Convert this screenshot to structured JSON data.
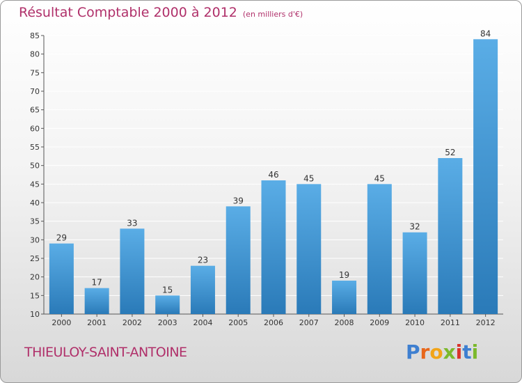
{
  "title": "Résultat Comptable 2000 à 2012",
  "unit": "(en milliers d'€)",
  "commune": "THIEULOY-SAINT-ANTOINE",
  "brand": [
    "P",
    "r",
    "o",
    "x",
    "i",
    "t",
    "i"
  ],
  "colors": {
    "title": "#b0306a",
    "bar_top": "#5aade6",
    "bar_bottom": "#2a7ab8",
    "grid": "#ffffff",
    "brand": [
      "#3e7fd0",
      "#e8671b",
      "#f2a418",
      "#7bb92c",
      "#d9342b",
      "#3e7fd0",
      "#7bb92c"
    ]
  },
  "chart_data": {
    "type": "bar",
    "title": "Résultat Comptable 2000 à 2012",
    "xlabel": "",
    "ylabel": "",
    "categories": [
      "2000",
      "2001",
      "2002",
      "2003",
      "2004",
      "2005",
      "2006",
      "2007",
      "2008",
      "2009",
      "2010",
      "2011",
      "2012"
    ],
    "values": [
      29,
      17,
      33,
      15,
      23,
      39,
      46,
      45,
      19,
      45,
      32,
      52,
      84
    ],
    "ylim": [
      10,
      85
    ],
    "yticks": [
      10,
      15,
      20,
      25,
      30,
      35,
      40,
      45,
      50,
      55,
      60,
      65,
      70,
      75,
      80,
      85
    ],
    "grid": true
  }
}
